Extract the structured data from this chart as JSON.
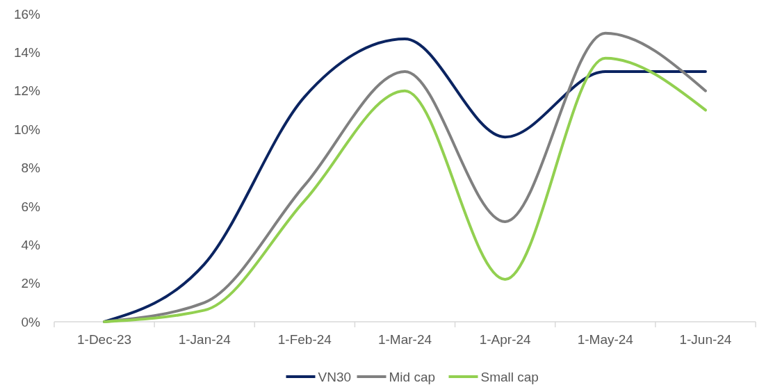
{
  "chart_data": {
    "type": "line",
    "categories": [
      "1-Dec-23",
      "1-Jan-24",
      "1-Feb-24",
      "1-Mar-24",
      "1-Apr-24",
      "1-May-24",
      "1-Jun-24"
    ],
    "series": [
      {
        "name": "VN30",
        "color": "#0b2461",
        "values": [
          0,
          3.0,
          11.7,
          14.7,
          9.6,
          13.0,
          13.0
        ]
      },
      {
        "name": "Mid cap",
        "color": "#808080",
        "values": [
          0,
          1.0,
          7.1,
          13.0,
          5.2,
          15.0,
          12.0
        ]
      },
      {
        "name": "Small cap",
        "color": "#92d050",
        "values": [
          0,
          0.6,
          6.3,
          12.0,
          2.2,
          13.7,
          11.0
        ]
      }
    ],
    "ylim": [
      0,
      16
    ],
    "yticks": [
      {
        "value": 0,
        "label": "0%"
      },
      {
        "value": 2,
        "label": "2%"
      },
      {
        "value": 4,
        "label": "4%"
      },
      {
        "value": 6,
        "label": "6%"
      },
      {
        "value": 8,
        "label": "8%"
      },
      {
        "value": 10,
        "label": "10%"
      },
      {
        "value": 12,
        "label": "12%"
      },
      {
        "value": 14,
        "label": "14%"
      },
      {
        "value": 16,
        "label": "16%"
      }
    ],
    "grid": false,
    "legend": "bottom",
    "marker": "none",
    "line_style": "solid"
  }
}
